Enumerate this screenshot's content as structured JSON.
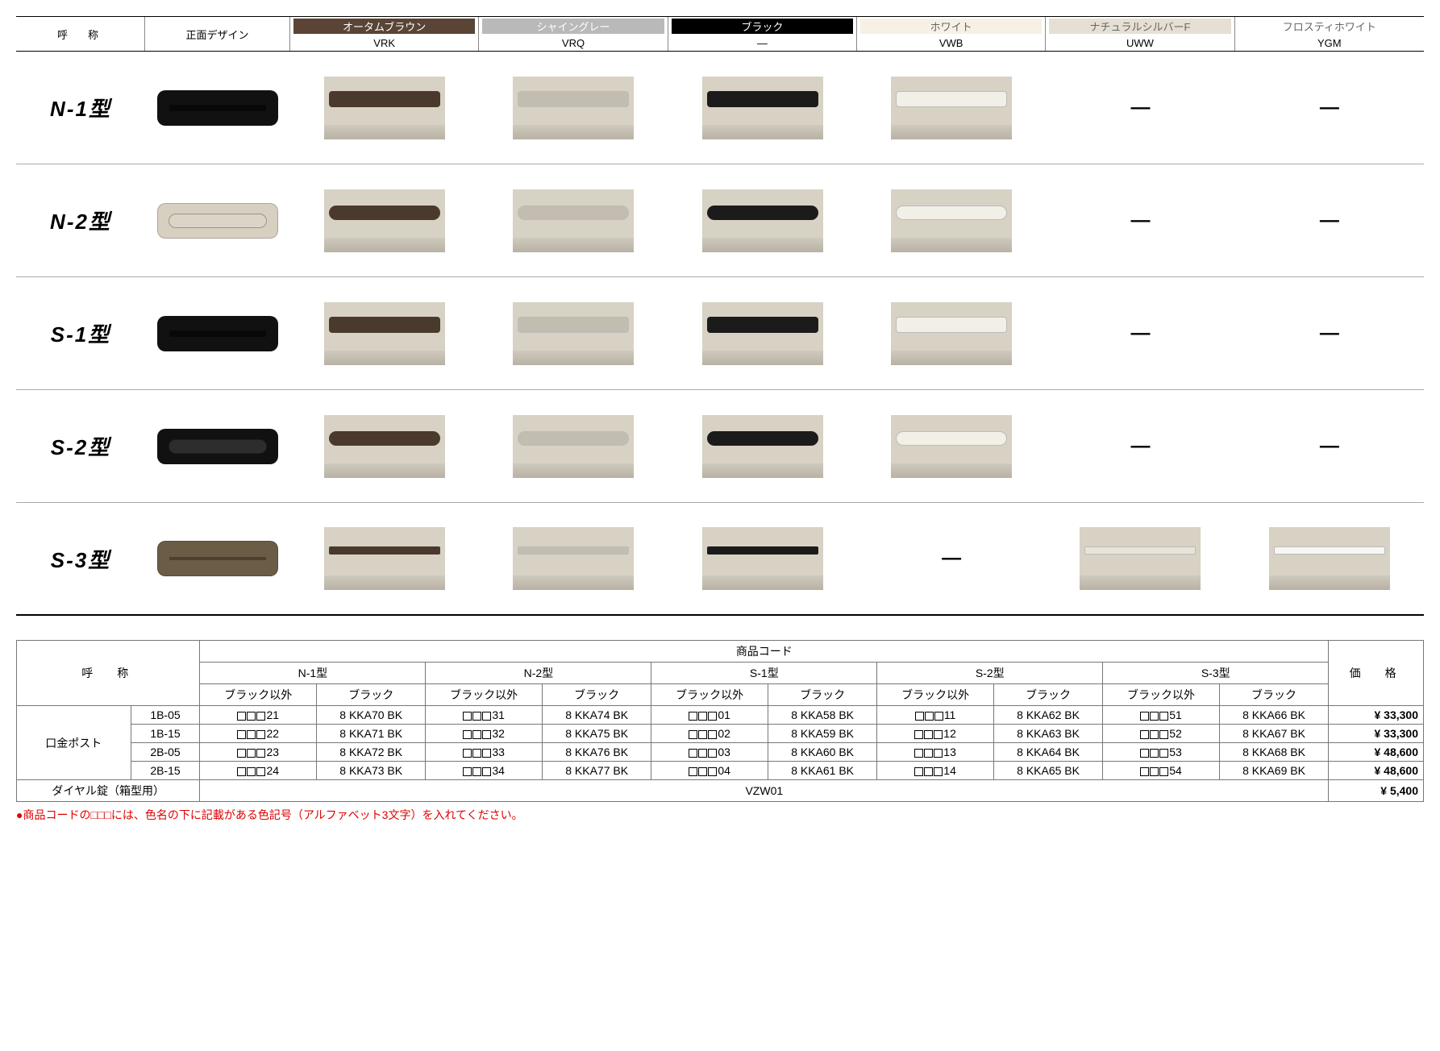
{
  "header": {
    "name_label": "呼　称",
    "design_label": "正面デザイン",
    "colors": [
      {
        "label": "オータムブラウン",
        "bg": "#5a4436",
        "fg": "#ffffff",
        "code": "VRK"
      },
      {
        "label": "シャイングレー",
        "bg": "#b9b9b9",
        "fg": "#ffffff",
        "code": "VRQ"
      },
      {
        "label": "ブラック",
        "bg": "#000000",
        "fg": "#ffffff",
        "code": "—"
      },
      {
        "label": "ホワイト",
        "bg": "#f6f1e4",
        "fg": "#666666",
        "code": "VWB"
      },
      {
        "label": "ナチュラルシルバーF",
        "bg": "#e6e0d4",
        "fg": "#666666",
        "code": "UWW"
      },
      {
        "label": "フロスティホワイト",
        "bg": "#ffffff",
        "fg": "#666666",
        "code": "YGM"
      }
    ]
  },
  "models": [
    {
      "name": "N-1型",
      "front_color": "#111111",
      "slot": "slit",
      "variants": [
        "#4a3a2d",
        "#c2bdb0",
        "#1b1b1b",
        "#f2efe7",
        "-",
        "-"
      ]
    },
    {
      "name": "N-2型",
      "front_color": "#d7d0c1",
      "slot": "round",
      "variants": [
        "#4a3a2d",
        "#c2bdb0",
        "#1b1b1b",
        "#f2efe7",
        "-",
        "-"
      ]
    },
    {
      "name": "S-1型",
      "front_color": "#111111",
      "slot": "slit",
      "variants": [
        "#4a3a2d",
        "#c2bdb0",
        "#1b1b1b",
        "#f2efe7",
        "-",
        "-"
      ]
    },
    {
      "name": "S-2型",
      "front_color": "#111111",
      "slot": "round",
      "variants": [
        "#4a3a2d",
        "#c2bdb0",
        "#1b1b1b",
        "#f2efe7",
        "-",
        "-"
      ]
    },
    {
      "name": "S-3型",
      "front_color": "#6b5d45",
      "slot": "flat",
      "variants": [
        "#4a3a2d",
        "#c2bdb0",
        "#1b1b1b",
        "-",
        "#e8e4da",
        "#f6f6f6"
      ]
    }
  ],
  "price_table": {
    "name_label": "呼　称",
    "code_label": "商品コード",
    "price_label": "価　格",
    "type_headers": [
      "N-1型",
      "N-2型",
      "S-1型",
      "S-2型",
      "S-3型"
    ],
    "sub_headers": [
      "ブラック以外",
      "ブラック"
    ],
    "group_label": "口金ポスト",
    "rows": [
      {
        "size": "1B-05",
        "codes": [
          [
            "21",
            "8 KKA70 BK"
          ],
          [
            "31",
            "8 KKA74 BK"
          ],
          [
            "01",
            "8 KKA58 BK"
          ],
          [
            "11",
            "8 KKA62 BK"
          ],
          [
            "51",
            "8 KKA66 BK"
          ]
        ],
        "price": "¥ 33,300"
      },
      {
        "size": "1B-15",
        "codes": [
          [
            "22",
            "8 KKA71 BK"
          ],
          [
            "32",
            "8 KKA75 BK"
          ],
          [
            "02",
            "8 KKA59 BK"
          ],
          [
            "12",
            "8 KKA63 BK"
          ],
          [
            "52",
            "8 KKA67 BK"
          ]
        ],
        "price": "¥ 33,300"
      },
      {
        "size": "2B-05",
        "codes": [
          [
            "23",
            "8 KKA72 BK"
          ],
          [
            "33",
            "8 KKA76 BK"
          ],
          [
            "03",
            "8 KKA60 BK"
          ],
          [
            "13",
            "8 KKA64 BK"
          ],
          [
            "53",
            "8 KKA68 BK"
          ]
        ],
        "price": "¥ 48,600"
      },
      {
        "size": "2B-15",
        "codes": [
          [
            "24",
            "8 KKA73 BK"
          ],
          [
            "34",
            "8 KKA77 BK"
          ],
          [
            "04",
            "8 KKA61 BK"
          ],
          [
            "14",
            "8 KKA65 BK"
          ],
          [
            "54",
            "8 KKA69 BK"
          ]
        ],
        "price": "¥ 48,600"
      }
    ],
    "dial_row": {
      "label": "ダイヤル錠（箱型用）",
      "code": "VZW01",
      "price": "¥ 5,400"
    }
  },
  "footnote": "●商品コードの□□□には、色名の下に記載がある色記号（アルファベット3文字）を入れてください。"
}
